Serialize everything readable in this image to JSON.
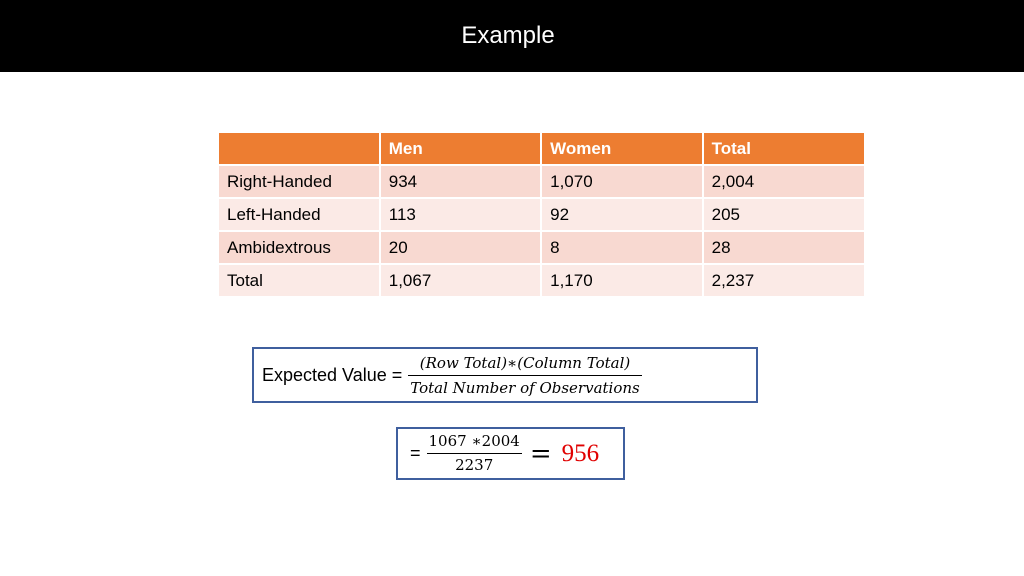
{
  "slide": {
    "title": "Example"
  },
  "table": {
    "headers": [
      "",
      "Men",
      "Women",
      "Total"
    ],
    "rows": [
      [
        "Right-Handed",
        "934",
        "1,070",
        "2,004"
      ],
      [
        "Left-Handed",
        "113",
        "92",
        "205"
      ],
      [
        "Ambidextrous",
        "20",
        "8",
        "28"
      ],
      [
        "Total",
        "1,067",
        "1,170",
        "2,237"
      ]
    ]
  },
  "formula": {
    "label": "Expected Value =",
    "numerator": "(Row Total)∗(Column Total)",
    "denominator": "Total Number of Observations"
  },
  "calculation": {
    "prefix": "=",
    "numerator": "1067 ∗2004",
    "denominator": "2237",
    "equals": "=",
    "result": "956"
  },
  "colors": {
    "header_bg": "#ed7d31",
    "row_odd": "#f8d9d1",
    "row_even": "#fbeae6",
    "box_border": "#3f5f9e",
    "result": "#e00000"
  }
}
